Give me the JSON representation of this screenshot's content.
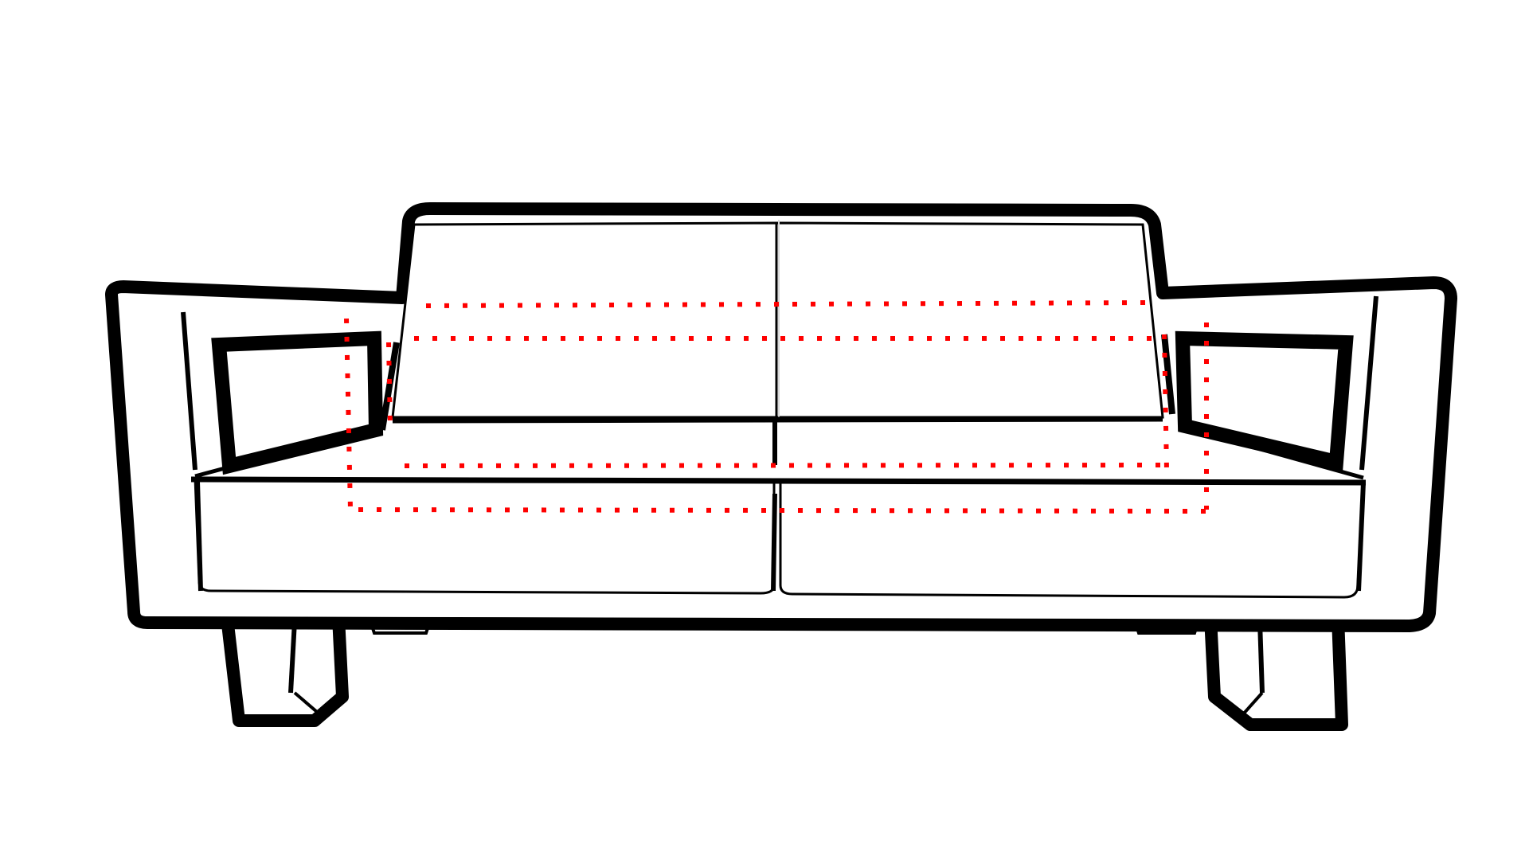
{
  "diagram": {
    "subject": "sofa",
    "style": "line-drawing",
    "background": "#ffffff",
    "outline_color": "#000000",
    "marker_color": "#ff0000",
    "marker_style": "dotted",
    "parts": [
      "back-cushion-left",
      "back-cushion-right",
      "seat-cushion-left",
      "seat-cushion-right",
      "armrest-left",
      "armrest-right",
      "leg-left",
      "leg-right"
    ]
  }
}
